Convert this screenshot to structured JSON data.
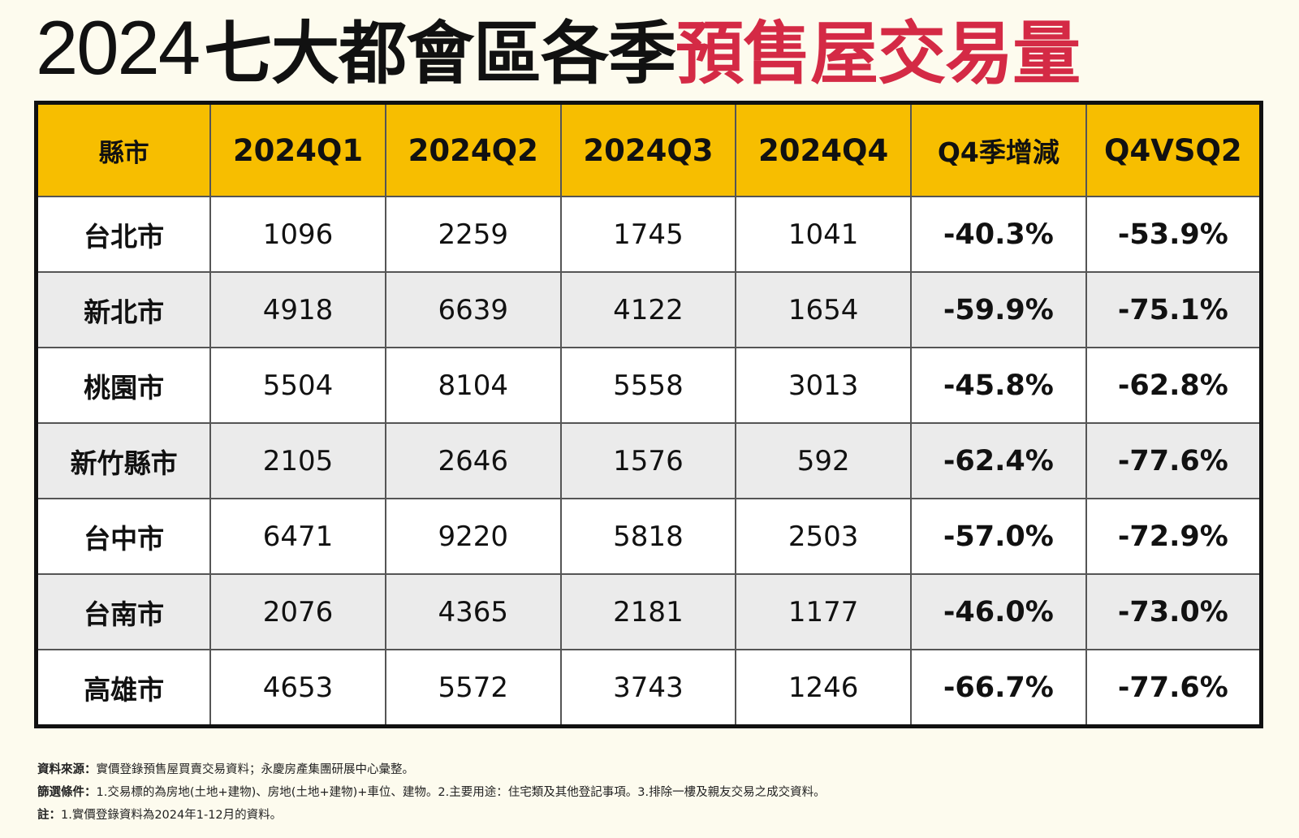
{
  "title": {
    "year": "2024",
    "black_part": "七大都會區各季",
    "red_part": "預售屋交易量"
  },
  "colors": {
    "header_bg": "#f7be00",
    "title_red": "#d42a45",
    "page_bg": "#fdfbee",
    "alt_row_bg": "#ebebeb"
  },
  "table": {
    "headers": [
      "縣市",
      "2024Q1",
      "2024Q2",
      "2024Q3",
      "2024Q4",
      "Q4季增減",
      "Q4VSQ2"
    ],
    "rows": [
      {
        "city": "台北市",
        "q1": "1096",
        "q2": "2259",
        "q3": "1745",
        "q4": "1041",
        "qoq": "-40.3%",
        "vsq2": "-53.9%"
      },
      {
        "city": "新北市",
        "q1": "4918",
        "q2": "6639",
        "q3": "4122",
        "q4": "1654",
        "qoq": "-59.9%",
        "vsq2": "-75.1%"
      },
      {
        "city": "桃園市",
        "q1": "5504",
        "q2": "8104",
        "q3": "5558",
        "q4": "3013",
        "qoq": "-45.8%",
        "vsq2": "-62.8%"
      },
      {
        "city": "新竹縣市",
        "q1": "2105",
        "q2": "2646",
        "q3": "1576",
        "q4": "592",
        "qoq": "-62.4%",
        "vsq2": "-77.6%"
      },
      {
        "city": "台中市",
        "q1": "6471",
        "q2": "9220",
        "q3": "5818",
        "q4": "2503",
        "qoq": "-57.0%",
        "vsq2": "-72.9%"
      },
      {
        "city": "台南市",
        "q1": "2076",
        "q2": "4365",
        "q3": "2181",
        "q4": "1177",
        "qoq": "-46.0%",
        "vsq2": "-73.0%"
      },
      {
        "city": "高雄市",
        "q1": "4653",
        "q2": "5572",
        "q3": "3743",
        "q4": "1246",
        "qoq": "-66.7%",
        "vsq2": "-77.6%"
      }
    ]
  },
  "notes": {
    "source_label": "資料來源：",
    "source_text": "實價登錄預售屋買賣交易資料；永慶房產集團研展中心彙整。",
    "filter_label": "篩選條件：",
    "filter_text": "1.交易標的為房地(土地+建物)、房地(土地+建物)+車位、建物。2.主要用途：住宅類及其他登記事項。3.排除一樓及親友交易之成交資料。",
    "note_label": "註：",
    "note_text": "1.實價登錄資料為2024年1-12月的資料。"
  }
}
